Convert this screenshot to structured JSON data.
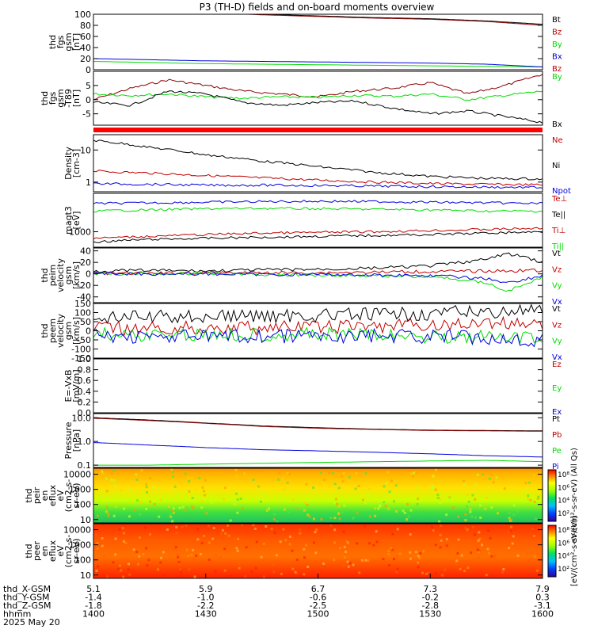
{
  "title": "P3 (TH-D) fields and on-board moments overview",
  "colors": {
    "black": "#000000",
    "red": "#c00000",
    "darkred": "#8b0000",
    "green": "#00dd00",
    "blue": "#0000dd",
    "eflag": "#ff0000"
  },
  "chart_data": [
    {
      "id": "fgs-gsm",
      "type": "line",
      "ylabel": [
        "thd",
        "fgs",
        "gsm",
        "[nT]"
      ],
      "ylim": [
        0,
        100
      ],
      "yticks": [
        "100",
        "80",
        "60",
        "40",
        "20",
        "0"
      ],
      "x": [
        1400,
        1415,
        1430,
        1445,
        1500,
        1515,
        1530,
        1545,
        1600
      ],
      "series": [
        {
          "name": "Bt",
          "color": "black",
          "values": [
            112,
            108,
            104,
            100,
            97,
            94,
            92,
            88,
            82
          ]
        },
        {
          "name": "Bz",
          "color": "darkred",
          "values": [
            111,
            107,
            103,
            99,
            96,
            93,
            91,
            87,
            80
          ]
        },
        {
          "name": "By",
          "color": "green",
          "values": [
            15,
            13,
            11,
            10,
            9,
            8,
            7,
            6,
            5
          ]
        },
        {
          "name": "Bx",
          "color": "blue",
          "values": [
            20,
            18,
            16,
            15,
            14,
            13,
            12,
            10,
            5
          ]
        }
      ],
      "legend": [
        {
          "label": "Bt",
          "color": "black"
        },
        {
          "label": "Bz",
          "color": "red"
        },
        {
          "label": "By",
          "color": "green"
        },
        {
          "label": "Bx",
          "color": "blue"
        },
        {
          "label": "Bz",
          "color": "red"
        }
      ]
    },
    {
      "id": "fgs-t89",
      "type": "line",
      "ylabel": [
        "thd",
        "fgs",
        "gsm",
        "-T89",
        "[nT]"
      ],
      "ylim": [
        -9,
        10
      ],
      "yticks": [
        "5",
        "0",
        "-5"
      ],
      "x": [
        1400,
        1410,
        1420,
        1430,
        1440,
        1450,
        1500,
        1510,
        1520,
        1530,
        1540,
        1550,
        1600
      ],
      "series": [
        {
          "name": "Bz",
          "color": "darkred",
          "values": [
            0,
            4,
            7,
            5,
            3,
            2,
            1,
            3,
            4,
            6,
            2,
            5,
            9
          ]
        },
        {
          "name": "By",
          "color": "green",
          "values": [
            2,
            1.5,
            2,
            1,
            0.5,
            1,
            0.8,
            1.5,
            1.2,
            2,
            0,
            1.5,
            3
          ]
        },
        {
          "name": "Bx",
          "color": "black",
          "values": [
            -1,
            -2,
            3,
            2,
            -1,
            -2,
            -1,
            -0.5,
            -3,
            -5,
            -4,
            -6,
            -8
          ]
        }
      ],
      "legend": [
        {
          "label": "By",
          "color": "green"
        },
        {
          "label": "Bx",
          "color": "black"
        }
      ]
    },
    {
      "id": "density",
      "type": "line",
      "ylabel": [
        "Density",
        "[cm-3]"
      ],
      "ylim": [
        0.5,
        30
      ],
      "yscale": "log",
      "yticks": [
        "10",
        "1"
      ],
      "x": [
        1400,
        1415,
        1430,
        1445,
        1500,
        1515,
        1530,
        1545,
        1600
      ],
      "series": [
        {
          "name": "Ne",
          "color": "red",
          "values": [
            2.2,
            1.9,
            1.6,
            1.35,
            1.15,
            1.0,
            0.9,
            0.85,
            0.82
          ]
        },
        {
          "name": "Ni",
          "color": "black",
          "values": [
            20,
            12,
            7,
            4.5,
            3,
            2,
            1.5,
            1.3,
            1.25
          ]
        },
        {
          "name": "Npot",
          "color": "blue",
          "values": [
            0.9,
            0.85,
            0.8,
            0.8,
            0.78,
            0.75,
            0.72,
            0.7,
            0.68
          ]
        }
      ],
      "legend": [
        {
          "label": "Ne",
          "color": "red"
        },
        {
          "label": "Ni",
          "color": "black"
        },
        {
          "label": "Npot",
          "color": "blue"
        }
      ]
    },
    {
      "id": "temperature",
      "type": "line",
      "ylabel": [
        "magt3",
        "[eV]"
      ],
      "ylim": [
        300,
        20000
      ],
      "yscale": "log",
      "yticks": [
        "1000"
      ],
      "x": [
        1400,
        1415,
        1430,
        1445,
        1500,
        1515,
        1530,
        1545,
        1600
      ],
      "series": [
        {
          "name": "Te⊥",
          "color": "blue",
          "values": [
            9000,
            9500,
            10000,
            10500,
            10800,
            10500,
            10000,
            9500,
            9000
          ]
        },
        {
          "name": "Te||",
          "color": "green",
          "values": [
            5000,
            5500,
            6000,
            6200,
            6000,
            5800,
            5500,
            5000,
            5000
          ]
        },
        {
          "name": "Ti⊥",
          "color": "red",
          "values": [
            600,
            700,
            800,
            900,
            950,
            1000,
            1100,
            1200,
            1300
          ]
        },
        {
          "name": "Ti||",
          "color": "black",
          "values": [
            450,
            550,
            600,
            650,
            700,
            750,
            800,
            900,
            1000
          ]
        }
      ],
      "legend": [
        {
          "label": "Te⊥",
          "color": "red"
        },
        {
          "label": "Te||",
          "color": "black"
        },
        {
          "label": "Ti⊥",
          "color": "red"
        },
        {
          "label": "Ti||",
          "color": "green"
        }
      ]
    },
    {
      "id": "peim-velocity",
      "type": "line",
      "ylabel": [
        "thd",
        "peim",
        "velocity",
        "gsm",
        "[km/s]"
      ],
      "ylim": [
        -50,
        45
      ],
      "yticks": [
        "40",
        "20",
        "0",
        "-20",
        "-40"
      ],
      "x": [
        1400,
        1415,
        1430,
        1445,
        1500,
        1515,
        1530,
        1545,
        1550,
        1555,
        1600
      ],
      "series": [
        {
          "name": "Vt",
          "color": "black",
          "values": [
            5,
            6,
            5,
            7,
            8,
            10,
            14,
            25,
            35,
            30,
            20
          ]
        },
        {
          "name": "Vz",
          "color": "red",
          "values": [
            1,
            1,
            2,
            2,
            2,
            3,
            4,
            5,
            5,
            6,
            6
          ]
        },
        {
          "name": "Vy",
          "color": "green",
          "values": [
            0,
            0,
            1,
            -1,
            -2,
            -3,
            -5,
            -15,
            -30,
            -20,
            -5
          ]
        },
        {
          "name": "Vx",
          "color": "blue",
          "values": [
            1,
            0,
            0,
            -1,
            -1,
            -2,
            -3,
            -8,
            -15,
            -10,
            -3
          ]
        }
      ],
      "legend": [
        {
          "label": "Vt",
          "color": "black"
        },
        {
          "label": "Vz",
          "color": "red"
        },
        {
          "label": "Vy",
          "color": "green"
        },
        {
          "label": "Vx",
          "color": "blue"
        }
      ]
    },
    {
      "id": "peem-velocity",
      "type": "line",
      "ylabel": [
        "thd",
        "peem",
        "velocity",
        "gsm",
        "[km/s]"
      ],
      "ylim": [
        -150,
        150
      ],
      "yticks": [
        "150",
        "100",
        "50",
        "0",
        "-50",
        "-100",
        "-150"
      ],
      "x": [
        1400,
        1415,
        1430,
        1445,
        1500,
        1515,
        1530,
        1545,
        1600
      ],
      "series": [
        {
          "name": "Vt",
          "color": "black",
          "values": [
            70,
            75,
            80,
            82,
            85,
            88,
            95,
            105,
            110
          ]
        },
        {
          "name": "Vz",
          "color": "red",
          "values": [
            10,
            12,
            15,
            18,
            20,
            25,
            30,
            40,
            45
          ]
        },
        {
          "name": "Vy",
          "color": "green",
          "values": [
            -20,
            -22,
            -20,
            -18,
            -20,
            -25,
            -30,
            -35,
            -40
          ]
        },
        {
          "name": "Vx",
          "color": "blue",
          "values": [
            -30,
            -30,
            -32,
            -30,
            -30,
            -28,
            -30,
            -40,
            -50
          ]
        }
      ],
      "legend": [
        {
          "label": "Vt",
          "color": "black"
        },
        {
          "label": "Vz",
          "color": "red"
        },
        {
          "label": "Vy",
          "color": "green"
        },
        {
          "label": "Vx",
          "color": "blue"
        }
      ]
    },
    {
      "id": "e-field",
      "type": "line",
      "ylabel": [
        "E=-VxB",
        "[mV/m]"
      ],
      "ylim": [
        0,
        1
      ],
      "yticks": [
        "1.0",
        "0.8",
        "0.6",
        "0.4",
        "0.2",
        "0.0"
      ],
      "x": [],
      "series": [],
      "legend": [
        {
          "label": "Ez",
          "color": "red"
        },
        {
          "label": "Ey",
          "color": "green"
        },
        {
          "label": "Ex",
          "color": "blue"
        }
      ]
    },
    {
      "id": "pressure",
      "type": "line",
      "ylabel": [
        "Pressure",
        "[nPa]"
      ],
      "ylim": [
        0.08,
        15
      ],
      "yscale": "log",
      "yticks": [
        "10.0",
        "1.0",
        "0.1"
      ],
      "x": [
        1400,
        1415,
        1430,
        1445,
        1500,
        1515,
        1530,
        1545,
        1600
      ],
      "series": [
        {
          "name": "Pt",
          "color": "black",
          "values": [
            10,
            8,
            6,
            4.5,
            3.8,
            3.3,
            3.0,
            2.9,
            2.8
          ]
        },
        {
          "name": "Pb",
          "color": "darkred",
          "values": [
            9.5,
            7.6,
            5.8,
            4.3,
            3.6,
            3.2,
            2.9,
            2.8,
            2.7
          ]
        },
        {
          "name": "Pe",
          "color": "green",
          "values": [
            0.1,
            0.1,
            0.11,
            0.12,
            0.13,
            0.14,
            0.15,
            0.16,
            0.14
          ]
        },
        {
          "name": "Pi",
          "color": "blue",
          "values": [
            0.9,
            0.7,
            0.55,
            0.45,
            0.4,
            0.35,
            0.3,
            0.25,
            0.22
          ]
        }
      ],
      "legend": [
        {
          "label": "Pt",
          "color": "black"
        },
        {
          "label": "Pb",
          "color": "red"
        },
        {
          "label": "Pe",
          "color": "green"
        },
        {
          "label": "Pi",
          "color": "blue"
        }
      ]
    },
    {
      "id": "peir-spectrogram",
      "type": "heatmap",
      "ylabel": [
        "thd",
        "peir",
        "en",
        "eflux",
        "eV",
        "(cm2-s-",
        "sr-eV)"
      ],
      "yscale": "log",
      "yticks": [
        "10000",
        "1000",
        "100",
        "10"
      ],
      "colorbar_ticks": [
        "10⁸",
        "10⁶",
        "10⁴",
        "10²"
      ],
      "colorbar_label": "eV/(cm²-s-sr-eV) (All Qs)"
    },
    {
      "id": "peer-spectrogram",
      "type": "heatmap",
      "ylabel": [
        "thd",
        "peer",
        "en",
        "eflux",
        "eV",
        "(cm2-s-",
        "sr-eV)"
      ],
      "yscale": "log",
      "yticks": [
        "10000",
        "1000",
        "100",
        "10"
      ],
      "colorbar_ticks": [
        "10⁸",
        "10⁶",
        "10⁴",
        "10²"
      ],
      "colorbar_label": "[eV/(cm²-s-sr-eV)]"
    }
  ],
  "xaxis": {
    "rows": [
      {
        "label": "thd_X-GSM",
        "values": [
          "5.1",
          "5.9",
          "6.7",
          "7.3",
          "7.9"
        ]
      },
      {
        "label": "thd_Y-GSM",
        "values": [
          "-1.4",
          "-1.0",
          "-0.6",
          "-0.2",
          "0.3"
        ]
      },
      {
        "label": "thd_Z-GSM",
        "values": [
          "-1.8",
          "-2.2",
          "-2.5",
          "-2.8",
          "-3.1"
        ]
      },
      {
        "label": "hhmm",
        "values": [
          "1400",
          "1430",
          "1500",
          "1530",
          "1600"
        ]
      }
    ],
    "date": "2025 May 20"
  }
}
